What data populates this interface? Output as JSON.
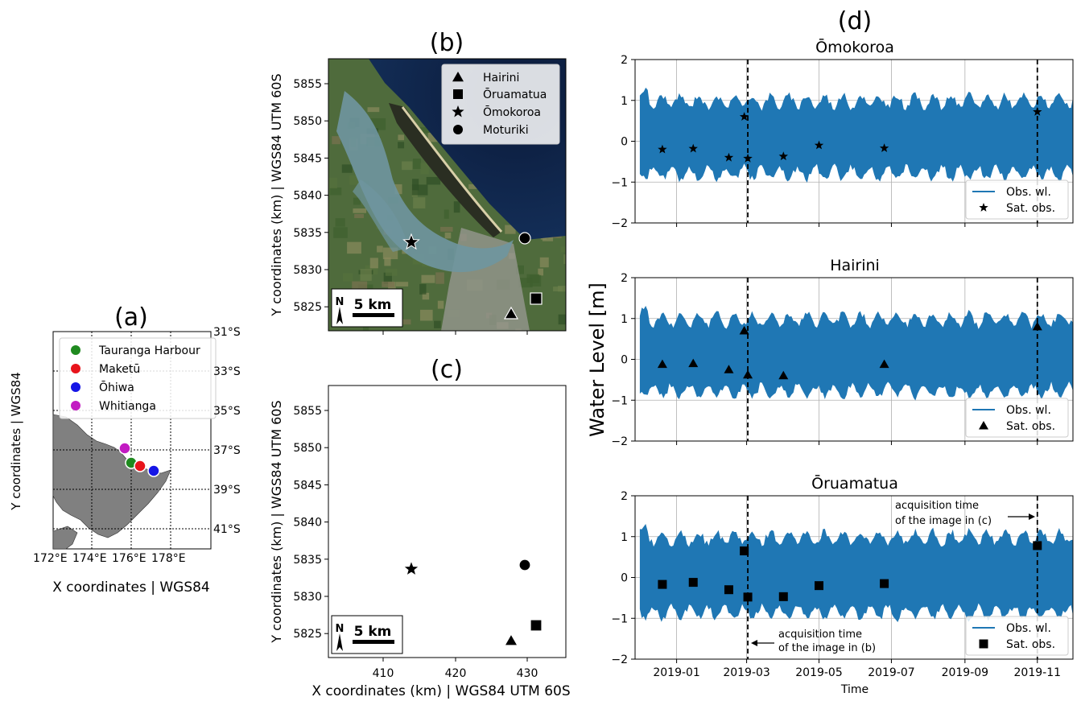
{
  "panel_a": {
    "label": "(a)",
    "ylabel": "Y coordinates | WGS84",
    "xlabel": "X coordinates | WGS84",
    "lon_labels": [
      "172°E",
      "174°E",
      "176°E",
      "178°E"
    ],
    "lat_labels": [
      "31°S",
      "33°S",
      "35°S",
      "37°S",
      "39°S",
      "41°S"
    ],
    "legend": [
      {
        "name": "Tauranga Harbour",
        "color": "#1f8a1f"
      },
      {
        "name": "Maketū",
        "color": "#e8141b"
      },
      {
        "name": "Ōhiwa",
        "color": "#1515e6"
      },
      {
        "name": "Whitianga",
        "color": "#c21bc2"
      }
    ]
  },
  "map_common": {
    "ylabel": "Y coordinates (km) | WGS84 UTM 60S",
    "xlabel": "X coordinates (km) | WGS84 UTM 60S",
    "yticks": [
      "5855",
      "5850",
      "5845",
      "5840",
      "5835",
      "5830",
      "5825"
    ],
    "xticks": [
      "410",
      "420",
      "430"
    ],
    "scalebar": "5 km",
    "north": "N"
  },
  "panel_b": {
    "label": "(b)",
    "legend": [
      "Hairini",
      "Ōruamatua",
      "Ōmokoroa",
      "Moturiki"
    ]
  },
  "panel_c": {
    "label": "(c)"
  },
  "panel_d": {
    "label": "(d)",
    "ylabel": "Water Level [m]",
    "xlabel": "Time",
    "xticks": [
      "2019-01",
      "2019-03",
      "2019-05",
      "2019-07",
      "2019-09",
      "2019-11"
    ],
    "yticks": [
      "2",
      "1",
      "0",
      "−1",
      "−2"
    ],
    "annotation_b": [
      "acquisition time",
      "of the image in (b)"
    ],
    "annotation_c": [
      "acquisition time",
      "of the image in (c)"
    ]
  },
  "chart_data": [
    {
      "type": "line",
      "title": "Ōmokoroa",
      "ylim": [
        -2,
        2
      ],
      "xlim": [
        "2018-11-27",
        "2019-12-01"
      ],
      "grid": true,
      "legend_position": "lower-right",
      "series": [
        {
          "name": "Obs. wl.",
          "type": "area",
          "color": "#1f77b4",
          "note": "tidal water level envelope",
          "values": {
            "x": [
              "2018-12-01",
              "2019-12-01"
            ],
            "high": [
              1.0,
              1.0
            ],
            "low": [
              -0.8,
              -0.8
            ]
          }
        },
        {
          "name": "Sat. obs.",
          "marker": "star",
          "x": [
            "2018-12-20",
            "2019-01-15",
            "2019-02-14",
            "2019-02-27",
            "2019-03-02",
            "2019-04-01",
            "2019-05-01",
            "2019-06-25",
            "2019-11-01"
          ],
          "y": [
            -0.2,
            -0.18,
            -0.4,
            0.6,
            -0.42,
            -0.37,
            -0.1,
            -0.17,
            0.72
          ]
        }
      ],
      "vlines": [
        "2019-03-02",
        "2019-11-01"
      ]
    },
    {
      "type": "line",
      "title": "Hairini",
      "ylim": [
        -2,
        2
      ],
      "xlim": [
        "2018-11-27",
        "2019-12-01"
      ],
      "grid": true,
      "legend_position": "lower-right",
      "series": [
        {
          "name": "Obs. wl.",
          "type": "area",
          "color": "#1f77b4"
        },
        {
          "name": "Sat. obs.",
          "marker": "triangle",
          "x": [
            "2018-12-20",
            "2019-01-15",
            "2019-02-14",
            "2019-02-27",
            "2019-03-02",
            "2019-04-01",
            "2019-06-25",
            "2019-11-01"
          ],
          "y": [
            -0.12,
            -0.1,
            -0.25,
            0.7,
            -0.38,
            -0.4,
            -0.12,
            0.8
          ]
        }
      ],
      "vlines": [
        "2019-03-02",
        "2019-11-01"
      ]
    },
    {
      "type": "line",
      "title": "Ōruamatua",
      "ylim": [
        -2,
        2
      ],
      "xlim": [
        "2018-11-27",
        "2019-12-01"
      ],
      "grid": true,
      "legend_position": "lower-right",
      "series": [
        {
          "name": "Obs. wl.",
          "type": "area",
          "color": "#1f77b4"
        },
        {
          "name": "Sat. obs.",
          "marker": "square",
          "x": [
            "2018-12-20",
            "2019-01-15",
            "2019-02-14",
            "2019-02-27",
            "2019-03-02",
            "2019-04-01",
            "2019-05-01",
            "2019-06-25",
            "2019-11-01"
          ],
          "y": [
            -0.17,
            -0.12,
            -0.3,
            0.65,
            -0.48,
            -0.47,
            -0.2,
            -0.15,
            0.78
          ]
        }
      ],
      "vlines": [
        "2019-03-02",
        "2019-11-01"
      ]
    }
  ]
}
